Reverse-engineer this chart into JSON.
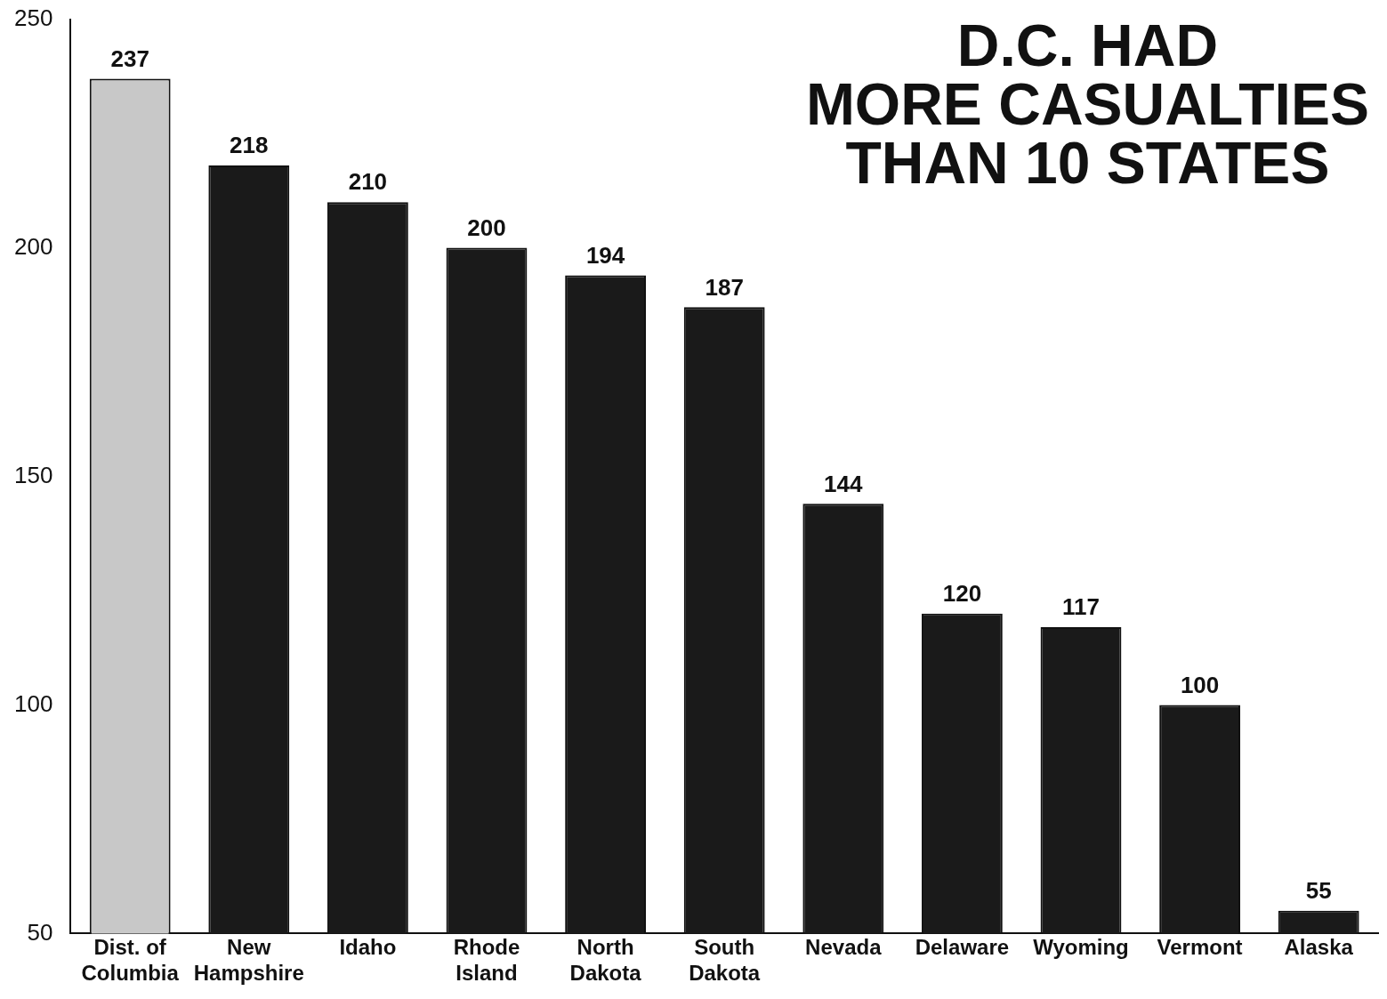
{
  "chart_data": {
    "type": "bar",
    "title": "D.C. HAD\nMORE CASUALTIES\nTHAN 10 STATES",
    "categories": [
      "Dist. of Columbia",
      "New Hampshire",
      "Idaho",
      "Rhode Island",
      "North Dakota",
      "South Dakota",
      "Nevada",
      "Delaware",
      "Wyoming",
      "Vermont",
      "Alaska"
    ],
    "values": [
      237,
      218,
      210,
      200,
      194,
      187,
      144,
      120,
      117,
      100,
      55
    ],
    "colors": [
      "#c8c8c8",
      "#1a1a1a",
      "#1a1a1a",
      "#1a1a1a",
      "#1a1a1a",
      "#1a1a1a",
      "#1a1a1a",
      "#1a1a1a",
      "#1a1a1a",
      "#1a1a1a",
      "#1a1a1a"
    ],
    "ylim": [
      50,
      250
    ],
    "yticks": [
      50,
      100,
      150,
      200,
      250
    ],
    "grid": false,
    "legend": false,
    "data_labels": true
  }
}
